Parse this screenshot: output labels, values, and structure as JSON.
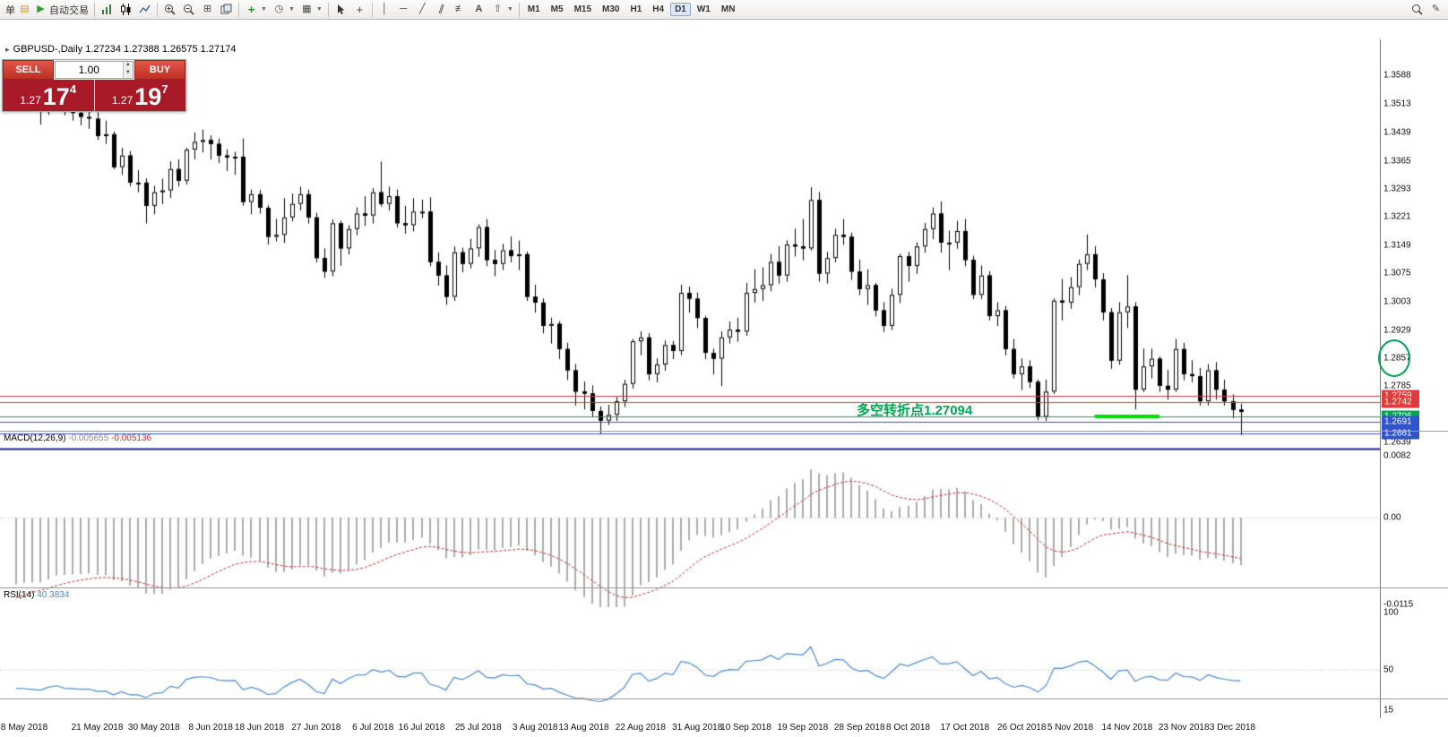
{
  "toolbar": {
    "new_order_label": "单",
    "autotrade_label": "自动交易",
    "timeframes": [
      "M1",
      "M5",
      "M15",
      "M30",
      "H1",
      "H4",
      "D1",
      "W1",
      "MN"
    ],
    "active_timeframe": "D1"
  },
  "chart_header": {
    "title": "GBPUSD-,Daily  1.27234 1.27388 1.26575 1.27174"
  },
  "one_click": {
    "sell_label": "SELL",
    "buy_label": "BUY",
    "volume": "1.00",
    "sell_price": {
      "small": "1.27",
      "big": "17",
      "sup": "4"
    },
    "buy_price": {
      "small": "1.27",
      "big": "19",
      "sup": "7"
    }
  },
  "annotation": {
    "text": "多空转折点1.27094",
    "color": "#00a651"
  },
  "indicators": {
    "macd_label": "MACD(12,26,9)",
    "macd_value": "-0.005655",
    "macd_signal": "-0.005136",
    "rsi_label": "RSI(14)",
    "rsi_value": "40.3834"
  },
  "chart_data": {
    "type": "candlestick",
    "symbol": "GBPUSD",
    "period": "Daily",
    "ylim": [
      1.2618,
      1.368
    ],
    "price_axis_labels": [
      "1.3588",
      "1.3513",
      "1.3439",
      "1.3365",
      "1.3293",
      "1.3221",
      "1.3149",
      "1.3075",
      "1.3003",
      "1.2929",
      "1.2857",
      "1.2785",
      "1.2711",
      "1.2639"
    ],
    "hlines": [
      {
        "price": 1.2759,
        "color": "#d43a3a",
        "width": 1,
        "tag": "1.2759",
        "tag_bg": "#e03c3c"
      },
      {
        "price": 1.2742,
        "color": "#d43a3a",
        "width": 1,
        "tag": "1.2742",
        "tag_bg": "#e03c3c"
      },
      {
        "price": 1.2706,
        "color": "#00a651",
        "width": 1,
        "tag": "1.2706",
        "tag_bg": "#00a651"
      },
      {
        "price": 1.2691,
        "color": "#2f55cc",
        "width": 1,
        "tag": "1.2691",
        "tag_bg": "#2f55cc"
      },
      {
        "price": 1.2661,
        "color": "#2f55cc",
        "width": 1,
        "tag": "1.2661",
        "tag_bg": "#2f55cc"
      },
      {
        "price": 1.2622,
        "color": "#2020a0",
        "width": 2,
        "tag": "",
        "tag_bg": ""
      }
    ],
    "segment": {
      "price": 1.2706,
      "i1": 133,
      "i2": 141,
      "color": "#00dd00",
      "width": 4
    },
    "colors": {
      "candle_up": "#ffffff",
      "candle_down": "#000000",
      "candle_line": "#000000",
      "macd_hist": "#ababab",
      "macd_signal": "#cc2a2a",
      "rsi_line": "#4a8bd4",
      "level_line": "#c0c0c0"
    },
    "dates": [
      {
        "i": 1,
        "label": "8 May 2018"
      },
      {
        "i": 10,
        "label": "21 May 2018"
      },
      {
        "i": 17,
        "label": "30 May 2018"
      },
      {
        "i": 24,
        "label": "8 Jun 2018"
      },
      {
        "i": 30,
        "label": "18 Jun 2018"
      },
      {
        "i": 37,
        "label": "27 Jun 2018"
      },
      {
        "i": 44,
        "label": "6 Jul 2018"
      },
      {
        "i": 50,
        "label": "16 Jul 2018"
      },
      {
        "i": 57,
        "label": "25 Jul 2018"
      },
      {
        "i": 64,
        "label": "3 Aug 2018"
      },
      {
        "i": 70,
        "label": "13 Aug 2018"
      },
      {
        "i": 77,
        "label": "22 Aug 2018"
      },
      {
        "i": 84,
        "label": "31 Aug 2018"
      },
      {
        "i": 90,
        "label": "10 Sep 2018"
      },
      {
        "i": 97,
        "label": "19 Sep 2018"
      },
      {
        "i": 104,
        "label": "28 Sep 2018"
      },
      {
        "i": 110,
        "label": "8 Oct 2018"
      },
      {
        "i": 117,
        "label": "17 Oct 2018"
      },
      {
        "i": 124,
        "label": "26 Oct 2018"
      },
      {
        "i": 130,
        "label": "5 Nov 2018"
      },
      {
        "i": 137,
        "label": "14 Nov 2018"
      },
      {
        "i": 144,
        "label": "23 Nov 2018"
      },
      {
        "i": 150,
        "label": "3 Dec 2018"
      }
    ],
    "candles": [
      [
        1.358,
        1.3588,
        1.3545,
        1.3555
      ],
      [
        1.3555,
        1.357,
        1.3518,
        1.3545
      ],
      [
        1.3545,
        1.3556,
        1.3494,
        1.352
      ],
      [
        1.352,
        1.3545,
        1.346,
        1.35
      ],
      [
        1.35,
        1.3556,
        1.3485,
        1.354
      ],
      [
        1.354,
        1.3585,
        1.3524,
        1.356
      ],
      [
        1.356,
        1.3566,
        1.3484,
        1.35
      ],
      [
        1.35,
        1.3521,
        1.347,
        1.349
      ],
      [
        1.349,
        1.3526,
        1.3458,
        1.348
      ],
      [
        1.348,
        1.3502,
        1.3449,
        1.348
      ],
      [
        1.3475,
        1.3492,
        1.342,
        1.343
      ],
      [
        1.343,
        1.347,
        1.341,
        1.3435
      ],
      [
        1.3435,
        1.3442,
        1.3345,
        1.335
      ],
      [
        1.335,
        1.34,
        1.333,
        1.338
      ],
      [
        1.338,
        1.3392,
        1.33,
        1.331
      ],
      [
        1.331,
        1.3342,
        1.3285,
        1.331
      ],
      [
        1.331,
        1.3321,
        1.3205,
        1.325
      ],
      [
        1.325,
        1.3302,
        1.3228,
        1.3285
      ],
      [
        1.3285,
        1.332,
        1.3254,
        1.329
      ],
      [
        1.329,
        1.3365,
        1.327,
        1.3345
      ],
      [
        1.3345,
        1.337,
        1.33,
        1.3315
      ],
      [
        1.3315,
        1.34,
        1.3305,
        1.3395
      ],
      [
        1.3395,
        1.344,
        1.337,
        1.3415
      ],
      [
        1.3415,
        1.3447,
        1.3388,
        1.342
      ],
      [
        1.342,
        1.3432,
        1.337,
        1.341
      ],
      [
        1.341,
        1.3424,
        1.336,
        1.338
      ],
      [
        1.338,
        1.3396,
        1.334,
        1.3375
      ],
      [
        1.3375,
        1.339,
        1.333,
        1.3377
      ],
      [
        1.3377,
        1.3424,
        1.325,
        1.326
      ],
      [
        1.326,
        1.3292,
        1.3228,
        1.328
      ],
      [
        1.328,
        1.3291,
        1.323,
        1.3245
      ],
      [
        1.3245,
        1.3252,
        1.315,
        1.317
      ],
      [
        1.317,
        1.3216,
        1.3158,
        1.3175
      ],
      [
        1.3175,
        1.327,
        1.3154,
        1.322
      ],
      [
        1.322,
        1.3282,
        1.321,
        1.3255
      ],
      [
        1.3255,
        1.33,
        1.3238,
        1.328
      ],
      [
        1.328,
        1.3292,
        1.3204,
        1.322
      ],
      [
        1.322,
        1.3232,
        1.3104,
        1.3115
      ],
      [
        1.3115,
        1.314,
        1.3064,
        1.308
      ],
      [
        1.308,
        1.3215,
        1.3068,
        1.3205
      ],
      [
        1.3205,
        1.3212,
        1.3095,
        1.314
      ],
      [
        1.314,
        1.32,
        1.3124,
        1.319
      ],
      [
        1.319,
        1.3246,
        1.3174,
        1.323
      ],
      [
        1.323,
        1.3275,
        1.3198,
        1.3225
      ],
      [
        1.3225,
        1.3296,
        1.3204,
        1.3285
      ],
      [
        1.3285,
        1.3364,
        1.3248,
        1.3255
      ],
      [
        1.3255,
        1.33,
        1.3238,
        1.3275
      ],
      [
        1.3275,
        1.3292,
        1.3194,
        1.3205
      ],
      [
        1.3205,
        1.325,
        1.3178,
        1.32
      ],
      [
        1.32,
        1.327,
        1.3184,
        1.3235
      ],
      [
        1.3235,
        1.3266,
        1.3218,
        1.3235
      ],
      [
        1.3235,
        1.3272,
        1.3094,
        1.3105
      ],
      [
        1.3105,
        1.313,
        1.3044,
        1.307
      ],
      [
        1.307,
        1.3096,
        1.2994,
        1.3015
      ],
      [
        1.3015,
        1.3145,
        1.3004,
        1.313
      ],
      [
        1.313,
        1.3142,
        1.3078,
        1.31
      ],
      [
        1.31,
        1.3165,
        1.3088,
        1.314
      ],
      [
        1.314,
        1.3202,
        1.3118,
        1.3195
      ],
      [
        1.3195,
        1.3216,
        1.3094,
        1.311
      ],
      [
        1.311,
        1.3136,
        1.3068,
        1.31
      ],
      [
        1.31,
        1.3152,
        1.3084,
        1.3135
      ],
      [
        1.3135,
        1.3171,
        1.3104,
        1.312
      ],
      [
        1.312,
        1.316,
        1.3084,
        1.3125
      ],
      [
        1.3125,
        1.3132,
        1.3004,
        1.3015
      ],
      [
        1.3015,
        1.3046,
        1.2974,
        1.3
      ],
      [
        1.3,
        1.3011,
        1.292,
        1.294
      ],
      [
        1.294,
        1.2961,
        1.2894,
        1.2945
      ],
      [
        1.2945,
        1.2952,
        1.2854,
        1.288
      ],
      [
        1.288,
        1.2896,
        1.28,
        1.2825
      ],
      [
        1.2825,
        1.2841,
        1.2734,
        1.277
      ],
      [
        1.277,
        1.2796,
        1.2724,
        1.2765
      ],
      [
        1.2765,
        1.2786,
        1.2704,
        1.272
      ],
      [
        1.272,
        1.2732,
        1.2662,
        1.2695
      ],
      [
        1.2695,
        1.2736,
        1.2684,
        1.271
      ],
      [
        1.271,
        1.2756,
        1.2694,
        1.2745
      ],
      [
        1.2745,
        1.2801,
        1.273,
        1.279
      ],
      [
        1.279,
        1.2906,
        1.2778,
        1.29
      ],
      [
        1.29,
        1.2926,
        1.2864,
        1.291
      ],
      [
        1.291,
        1.2921,
        1.2799,
        1.2815
      ],
      [
        1.2815,
        1.2856,
        1.2794,
        1.284
      ],
      [
        1.284,
        1.2902,
        1.2824,
        1.289
      ],
      [
        1.289,
        1.2901,
        1.2854,
        1.2875
      ],
      [
        1.2875,
        1.3046,
        1.2864,
        1.3025
      ],
      [
        1.3025,
        1.3041,
        1.2974,
        1.301
      ],
      [
        1.301,
        1.3026,
        1.2934,
        1.296
      ],
      [
        1.296,
        1.2966,
        1.2854,
        1.287
      ],
      [
        1.287,
        1.2881,
        1.2814,
        1.2855
      ],
      [
        1.2855,
        1.2926,
        1.2784,
        1.291
      ],
      [
        1.291,
        1.2951,
        1.2894,
        1.293
      ],
      [
        1.293,
        1.2961,
        1.2899,
        1.2925
      ],
      [
        1.2925,
        1.3051,
        1.2914,
        1.3025
      ],
      [
        1.3025,
        1.3086,
        1.3,
        1.3035
      ],
      [
        1.3035,
        1.3091,
        1.3004,
        1.3045
      ],
      [
        1.3045,
        1.3126,
        1.3029,
        1.3105
      ],
      [
        1.3105,
        1.3146,
        1.3049,
        1.307
      ],
      [
        1.307,
        1.3161,
        1.3054,
        1.315
      ],
      [
        1.315,
        1.3191,
        1.3119,
        1.3145
      ],
      [
        1.3145,
        1.3216,
        1.3109,
        1.314
      ],
      [
        1.314,
        1.3298,
        1.3134,
        1.3265
      ],
      [
        1.3265,
        1.3286,
        1.3054,
        1.3075
      ],
      [
        1.3075,
        1.3131,
        1.3049,
        1.3115
      ],
      [
        1.3115,
        1.3191,
        1.3104,
        1.3175
      ],
      [
        1.3175,
        1.3216,
        1.3149,
        1.317
      ],
      [
        1.317,
        1.3181,
        1.3059,
        1.308
      ],
      [
        1.308,
        1.3111,
        1.3019,
        1.3035
      ],
      [
        1.3035,
        1.3086,
        1.2994,
        1.3045
      ],
      [
        1.3045,
        1.3051,
        1.2964,
        1.298
      ],
      [
        1.298,
        1.3001,
        1.2924,
        1.294
      ],
      [
        1.294,
        1.3036,
        1.2929,
        1.302
      ],
      [
        1.302,
        1.3126,
        1.2999,
        1.312
      ],
      [
        1.312,
        1.3131,
        1.3054,
        1.3095
      ],
      [
        1.3095,
        1.3156,
        1.3074,
        1.3145
      ],
      [
        1.3145,
        1.3206,
        1.3129,
        1.319
      ],
      [
        1.319,
        1.3246,
        1.3164,
        1.323
      ],
      [
        1.323,
        1.3261,
        1.3129,
        1.3155
      ],
      [
        1.3155,
        1.3186,
        1.3084,
        1.3155
      ],
      [
        1.3155,
        1.3211,
        1.3139,
        1.3185
      ],
      [
        1.3185,
        1.3216,
        1.3094,
        1.311
      ],
      [
        1.311,
        1.3121,
        1.3009,
        1.302
      ],
      [
        1.302,
        1.3096,
        1.3009,
        1.307
      ],
      [
        1.307,
        1.3081,
        1.2954,
        1.2965
      ],
      [
        1.2965,
        1.3001,
        1.2939,
        1.298
      ],
      [
        1.298,
        1.2991,
        1.2864,
        1.288
      ],
      [
        1.288,
        1.2906,
        1.2804,
        1.2815
      ],
      [
        1.2815,
        1.2856,
        1.2774,
        1.2835
      ],
      [
        1.2835,
        1.2851,
        1.2779,
        1.2795
      ],
      [
        1.2795,
        1.2801,
        1.2696,
        1.2705
      ],
      [
        1.2705,
        1.2801,
        1.2694,
        1.277
      ],
      [
        1.277,
        1.3011,
        1.2764,
        1.3005
      ],
      [
        1.3005,
        1.3061,
        1.2954,
        1.3
      ],
      [
        1.3,
        1.3066,
        1.2984,
        1.304
      ],
      [
        1.304,
        1.3111,
        1.3019,
        1.31
      ],
      [
        1.31,
        1.3176,
        1.3084,
        1.3125
      ],
      [
        1.3125,
        1.3146,
        1.3039,
        1.306
      ],
      [
        1.306,
        1.3076,
        1.2954,
        1.2975
      ],
      [
        1.2975,
        1.2986,
        1.2829,
        1.285
      ],
      [
        1.285,
        1.3001,
        1.2839,
        1.2975
      ],
      [
        1.2975,
        1.3071,
        1.2934,
        1.299
      ],
      [
        1.299,
        1.3001,
        1.2724,
        1.2775
      ],
      [
        1.2775,
        1.2881,
        1.2769,
        1.2835
      ],
      [
        1.2835,
        1.2881,
        1.2804,
        1.2855
      ],
      [
        1.2855,
        1.2861,
        1.2769,
        1.2785
      ],
      [
        1.2785,
        1.2826,
        1.2749,
        1.2775
      ],
      [
        1.2775,
        1.2906,
        1.2769,
        1.288
      ],
      [
        1.288,
        1.2896,
        1.2799,
        1.2815
      ],
      [
        1.2815,
        1.2851,
        1.2794,
        1.281
      ],
      [
        1.281,
        1.2831,
        1.2734,
        1.2745
      ],
      [
        1.2745,
        1.2841,
        1.2734,
        1.2825
      ],
      [
        1.2825,
        1.2846,
        1.2749,
        1.2775
      ],
      [
        1.2775,
        1.2801,
        1.2734,
        1.2745
      ],
      [
        1.2745,
        1.2763,
        1.2701,
        1.2723
      ],
      [
        1.27234,
        1.27388,
        1.26575,
        1.27174
      ]
    ],
    "macd": {
      "fast": 12,
      "slow": 26,
      "signal": 9,
      "seed_fast": 1.361,
      "seed_slow": 1.37,
      "seed_signal": -0.011,
      "ylim": [
        -0.0118,
        0.0088
      ],
      "axis_labels": [
        {
          "v": 0.0082,
          "t": "0.0082"
        },
        {
          "v": 0,
          "t": "0.00"
        },
        {
          "v": -0.0115,
          "t": "-0.0115"
        }
      ]
    },
    "rsi": {
      "period": 14,
      "ylim": [
        8,
        104
      ],
      "level": 50,
      "axis_labels": [
        {
          "v": 100,
          "t": "100"
        },
        {
          "v": 50,
          "t": "50"
        },
        {
          "v": 15,
          "t": "15"
        }
      ]
    }
  }
}
